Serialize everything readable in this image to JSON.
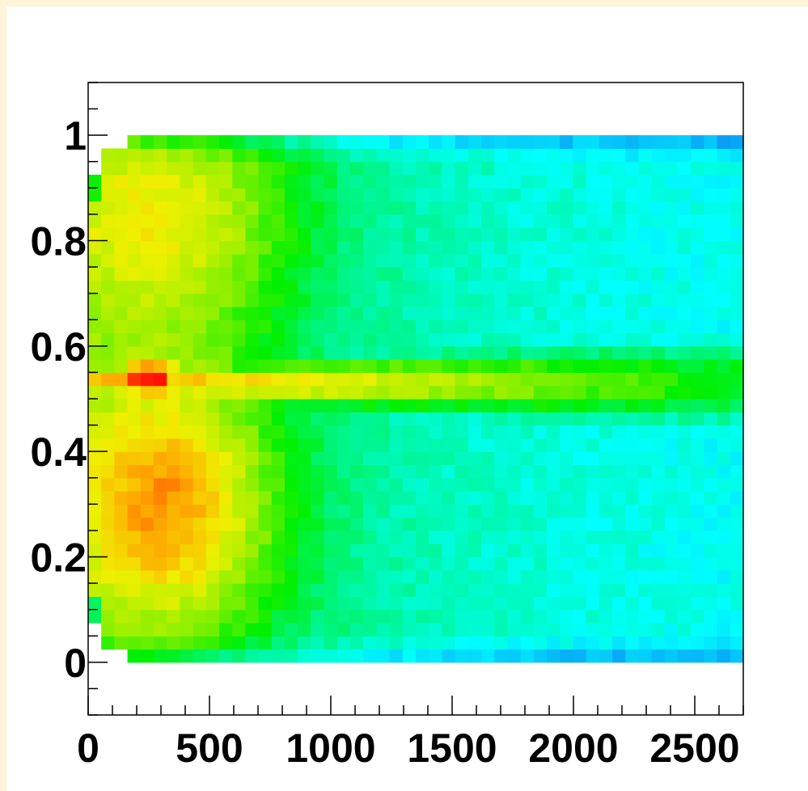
{
  "chart_data": {
    "type": "heatmap",
    "title": "",
    "xlabel": "",
    "ylabel": "",
    "xlim": [
      0,
      2700
    ],
    "ylim": [
      -0.1,
      1.1
    ],
    "x_data_range": [
      0,
      2700
    ],
    "y_data_range": [
      0,
      1
    ],
    "x_ticks": [
      0,
      500,
      1000,
      1500,
      2000,
      2500
    ],
    "x_tick_labels": [
      "0",
      "500",
      "1000",
      "1500",
      "2000",
      "2500"
    ],
    "y_ticks": [
      0,
      0.2,
      0.4,
      0.6,
      0.8,
      1
    ],
    "y_tick_labels": [
      "0",
      "0.2",
      "0.4",
      "0.6",
      "0.8",
      "1"
    ],
    "colormap": [
      "#5a1ff0",
      "#0a3cf5",
      "#0aa0f5",
      "#00ffff",
      "#00f58c",
      "#00f000",
      "#8cf000",
      "#f0f000",
      "#ffa000",
      "#ff0000"
    ],
    "grid": false,
    "legend": "none",
    "description_of_density": {
      "peak": {
        "x": 250,
        "y": 0.54,
        "level": 1.0
      },
      "ridge": {
        "y": 0.53,
        "from_x": 0,
        "to_x": 2700,
        "level_start": 0.9,
        "level_end": 0.55
      },
      "upper_band": {
        "x": 350,
        "y": 0.85,
        "level": 0.62
      },
      "lower_band": {
        "x": 350,
        "y": 0.3,
        "level": 0.68
      },
      "tail_level_at_edges": 0.3
    }
  }
}
